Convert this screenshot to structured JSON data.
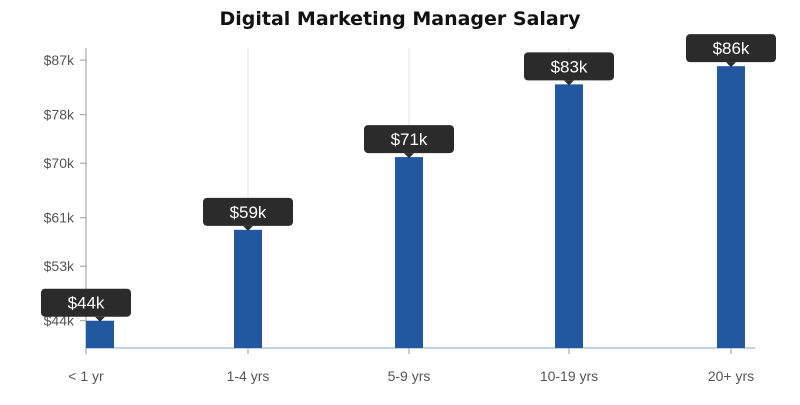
{
  "chart_data": {
    "type": "bar",
    "title": "Digital Marketing Manager Salary",
    "xlabel": "",
    "ylabel": "",
    "categories": [
      "< 1 yr",
      "1-4 yrs",
      "5-9 yrs",
      "10-19 yrs",
      "20+ yrs"
    ],
    "values": [
      44,
      59,
      71,
      83,
      86
    ],
    "data_labels": [
      "$44k",
      "$59k",
      "$71k",
      "$83k",
      "$86k"
    ],
    "y_ticks": [
      44,
      53,
      61,
      70,
      78,
      87
    ],
    "y_tick_labels": [
      "$44k",
      "$53k",
      "$61k",
      "$70k",
      "$78k",
      "$87k"
    ],
    "ylim": [
      39.5,
      89
    ],
    "grid": "vertical",
    "legend": "none",
    "colors": {
      "bar": "#2158a0",
      "tooltip": "#2b2b2b",
      "tooltip_text": "#ffffff",
      "grid": "#e3e3e3",
      "axis": "#999999",
      "baseline": "#7fa6c9",
      "tick_text": "#555555"
    }
  }
}
